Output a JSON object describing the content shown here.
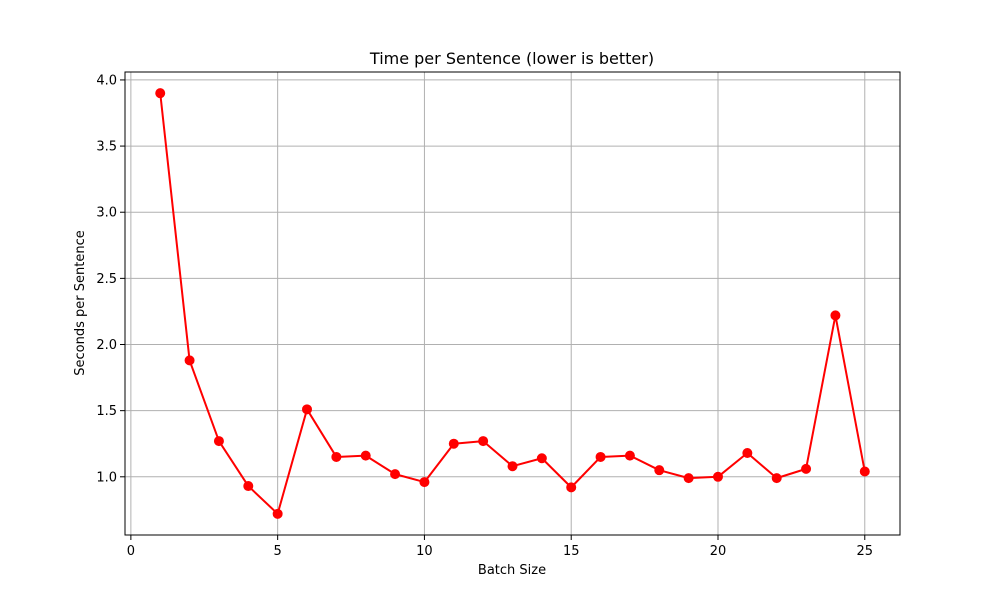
{
  "chart_data": {
    "type": "line",
    "title": "Time per Sentence (lower is better)",
    "xlabel": "Batch Size",
    "ylabel": "Seconds per Sentence",
    "xlim": [
      -0.2,
      26.2
    ],
    "ylim": [
      0.56,
      4.06
    ],
    "xticks": [
      0,
      5,
      10,
      15,
      20,
      25
    ],
    "xtick_labels": [
      "0",
      "5",
      "10",
      "15",
      "20",
      "25"
    ],
    "yticks": [
      1.0,
      1.5,
      2.0,
      2.5,
      3.0,
      3.5,
      4.0
    ],
    "ytick_labels": [
      "1.0",
      "1.5",
      "2.0",
      "2.5",
      "3.0",
      "3.5",
      "4.0"
    ],
    "grid": true,
    "series": [
      {
        "color": "#ff0000",
        "marker": "circle",
        "x": [
          1,
          2,
          3,
          4,
          5,
          6,
          7,
          8,
          9,
          10,
          11,
          12,
          13,
          14,
          15,
          16,
          17,
          18,
          19,
          20,
          21,
          22,
          23,
          24,
          25
        ],
        "values": [
          3.9,
          1.88,
          1.27,
          0.93,
          0.72,
          1.51,
          1.15,
          1.16,
          1.02,
          0.96,
          1.25,
          1.27,
          1.08,
          1.14,
          0.92,
          1.15,
          1.16,
          1.05,
          0.99,
          1.0,
          1.18,
          0.99,
          1.06,
          2.22,
          1.04
        ]
      }
    ]
  }
}
